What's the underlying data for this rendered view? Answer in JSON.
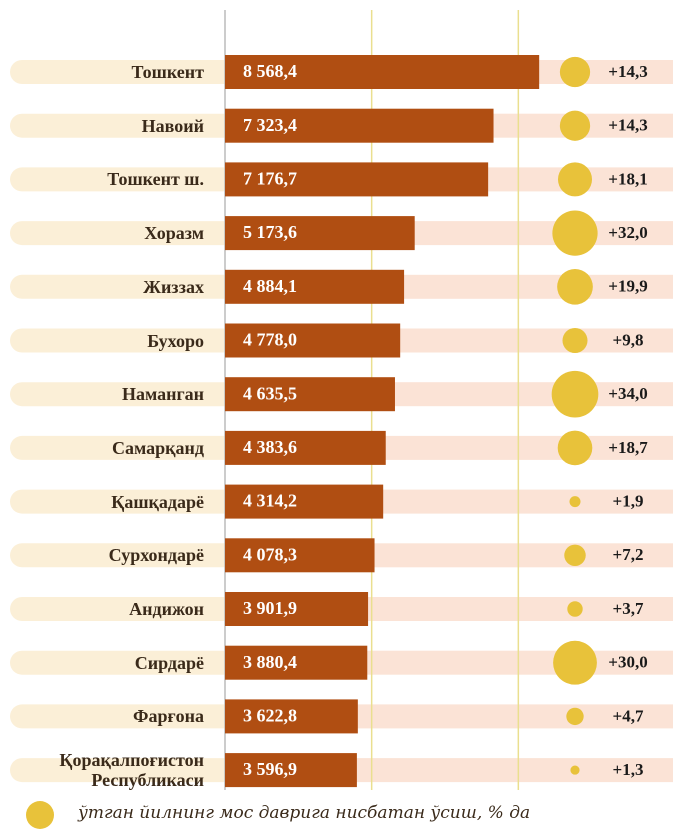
{
  "chart_data": {
    "type": "bar",
    "categories": [
      "Тошкент",
      "Навоий",
      "Тошкент ш.",
      "Хоразм",
      "Жиззах",
      "Бухоро",
      "Наманган",
      "Самарқанд",
      "Қашқадарё",
      "Сурхондарё",
      "Андижон",
      "Сирдарё",
      "Фарғона",
      "Қорақалпоғистон Республикаси"
    ],
    "series": [
      {
        "name": "value",
        "color": "#b04e12",
        "values": [
          8568.4,
          7323.4,
          7176.7,
          5173.6,
          4884.1,
          4778.0,
          4635.5,
          4383.6,
          4314.2,
          4078.3,
          3901.9,
          3880.4,
          3622.8,
          3596.9
        ],
        "value_labels": [
          "8 568,4",
          "7 323,4",
          "7 176,7",
          "5 173,6",
          "4 884,1",
          "4 778,0",
          "4 635,5",
          "4 383,6",
          "4 314,2",
          "4 078,3",
          "3 901,9",
          "3 880,4",
          "3 622,8",
          "3 596,9"
        ]
      },
      {
        "name": "ўтган йилнинг мос даврига нисбатан ўсиш, % да",
        "color": "#e8c23a",
        "values": [
          14.3,
          14.3,
          18.1,
          32.0,
          19.9,
          9.8,
          34.0,
          18.7,
          1.9,
          7.2,
          3.7,
          30.0,
          4.7,
          1.3
        ],
        "value_labels": [
          "+14,3",
          "+14,3",
          "+18,1",
          "+32,0",
          "+19,9",
          "+9,8",
          "+34,0",
          "+18,7",
          "+1,9",
          "+7,2",
          "+3,7",
          "+30,0",
          "+4,7",
          "+1,3"
        ]
      }
    ],
    "xlim": [
      0,
      12000
    ],
    "xticks": [
      0,
      4000,
      8000
    ],
    "grid": true
  }
}
